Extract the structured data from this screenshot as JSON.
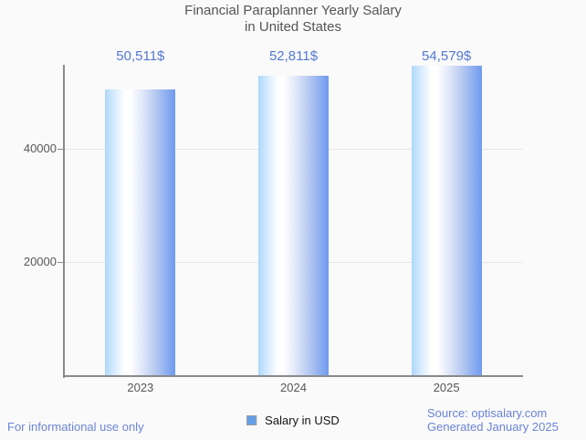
{
  "title": {
    "line1": "Financial Paraplanner Yearly Salary",
    "line2": "in United States"
  },
  "chart_data": {
    "type": "bar",
    "title": "Financial Paraplanner Yearly Salary in United States",
    "categories": [
      "2023",
      "2024",
      "2025"
    ],
    "series": [
      {
        "name": "Salary in USD",
        "values": [
          50511,
          52811,
          54579
        ]
      }
    ],
    "value_labels": [
      "50,511$",
      "52,811$",
      "54,579$"
    ],
    "xlabel": "",
    "ylabel": "",
    "yticks": [
      20000,
      40000
    ],
    "ytick_labels": [
      "20000",
      "40000"
    ],
    "ylim": [
      0,
      55000
    ],
    "grid": "horizontal-only",
    "legend_position": "bottom-center"
  },
  "legend": {
    "label": "Salary in USD",
    "swatch_color": "#64a0e8"
  },
  "footer": {
    "left": "For informational use only",
    "source": "Source: optisalary.com",
    "generated": "Generated January 2025"
  },
  "colors": {
    "background": "#fafafa",
    "title_text": "#545557",
    "axis_text": "#58585a",
    "value_label_text": "#5378d0",
    "footer_text": "#6b84d6",
    "axis_line": "#8a8a8a",
    "gridline": "#e6e6e6",
    "bar_gradient_left": "#aed7fb",
    "bar_gradient_mid": "#ffffff",
    "bar_gradient_right": "#6e9af0",
    "legend_swatch": "#64a0e8"
  }
}
